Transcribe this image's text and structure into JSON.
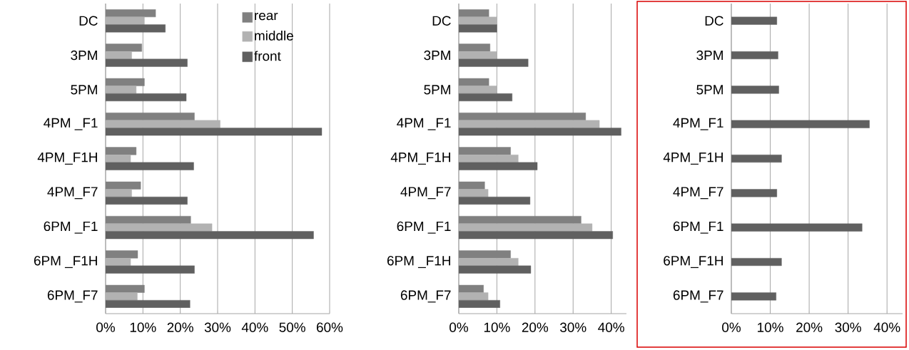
{
  "chart_data": [
    {
      "type": "bar",
      "orientation": "horizontal",
      "grid": "x",
      "legend": "top right",
      "categories": [
        "DC",
        "3PM",
        "5PM",
        "4PM _F1",
        "4PM_F1H",
        "4PM_F7",
        "6PM _F1",
        "6PM _F1H",
        "6PM_F7"
      ],
      "xlim": [
        0,
        60
      ],
      "xticks": [
        {
          "value": 0,
          "label": "0%"
        },
        {
          "value": 10,
          "label": "10%"
        },
        {
          "value": 20,
          "label": "20%"
        },
        {
          "value": 30,
          "label": "30%"
        },
        {
          "value": 40,
          "label": "40%"
        },
        {
          "value": 50,
          "label": "50%"
        },
        {
          "value": 60,
          "label": "60%"
        }
      ],
      "series": [
        {
          "name": "rear",
          "color": "#808080",
          "values": [
            13.4,
            9.7,
            10.4,
            23.8,
            8.2,
            9.4,
            22.8,
            8.6,
            10.4
          ]
        },
        {
          "name": "middle",
          "color": "#b2b2b2",
          "values": [
            10.4,
            7.0,
            8.2,
            30.7,
            6.7,
            7.0,
            28.5,
            6.7,
            8.5
          ]
        },
        {
          "name": "front",
          "color": "#606060",
          "values": [
            16.0,
            21.9,
            21.6,
            57.9,
            23.6,
            21.9,
            55.7,
            23.8,
            22.6
          ]
        }
      ]
    },
    {
      "type": "bar",
      "orientation": "horizontal",
      "grid": "x",
      "categories": [
        "DC",
        "3PM",
        "5PM",
        "4PM _F1",
        "4PM_F1H",
        "4PM_F7",
        "6PM _F1",
        "6PM _F1H",
        "6PM_F7"
      ],
      "xlim": [
        0,
        44
      ],
      "xticks": [
        {
          "value": 0,
          "label": "0%"
        },
        {
          "value": 10,
          "label": "10%"
        },
        {
          "value": 20,
          "label": "20%"
        },
        {
          "value": 30,
          "label": "30%"
        },
        {
          "value": 40,
          "label": "40%"
        }
      ],
      "series": [
        {
          "color": "#808080",
          "values": [
            7.9,
            8.2,
            7.9,
            33.3,
            13.6,
            6.8,
            32.1,
            13.6,
            6.5
          ]
        },
        {
          "color": "#b2b2b2",
          "values": [
            9.9,
            10.0,
            10.0,
            36.9,
            15.6,
            7.7,
            35.0,
            15.6,
            7.7
          ]
        },
        {
          "color": "#606060",
          "values": [
            10.0,
            18.2,
            14.0,
            42.6,
            20.6,
            18.7,
            40.4,
            18.9,
            10.8
          ]
        }
      ]
    },
    {
      "type": "bar",
      "orientation": "horizontal",
      "grid": "x",
      "categories": [
        "DC",
        "3PM",
        "5PM",
        "4PM_F1",
        "4PM_F1H",
        "4PM_F7",
        "6PM_F1",
        "6PM_F1H",
        "6PM_F7"
      ],
      "xlim": [
        0,
        44
      ],
      "xticks": [
        {
          "value": 0,
          "label": "0%"
        },
        {
          "value": 10,
          "label": "10%"
        },
        {
          "value": 20,
          "label": "20%"
        },
        {
          "value": 30,
          "label": "30%"
        },
        {
          "value": 40,
          "label": "40%"
        }
      ],
      "series": [
        {
          "color": "#606060",
          "values": [
            11.7,
            12.0,
            12.2,
            35.5,
            12.9,
            11.7,
            33.6,
            12.9,
            11.5
          ]
        }
      ]
    }
  ]
}
